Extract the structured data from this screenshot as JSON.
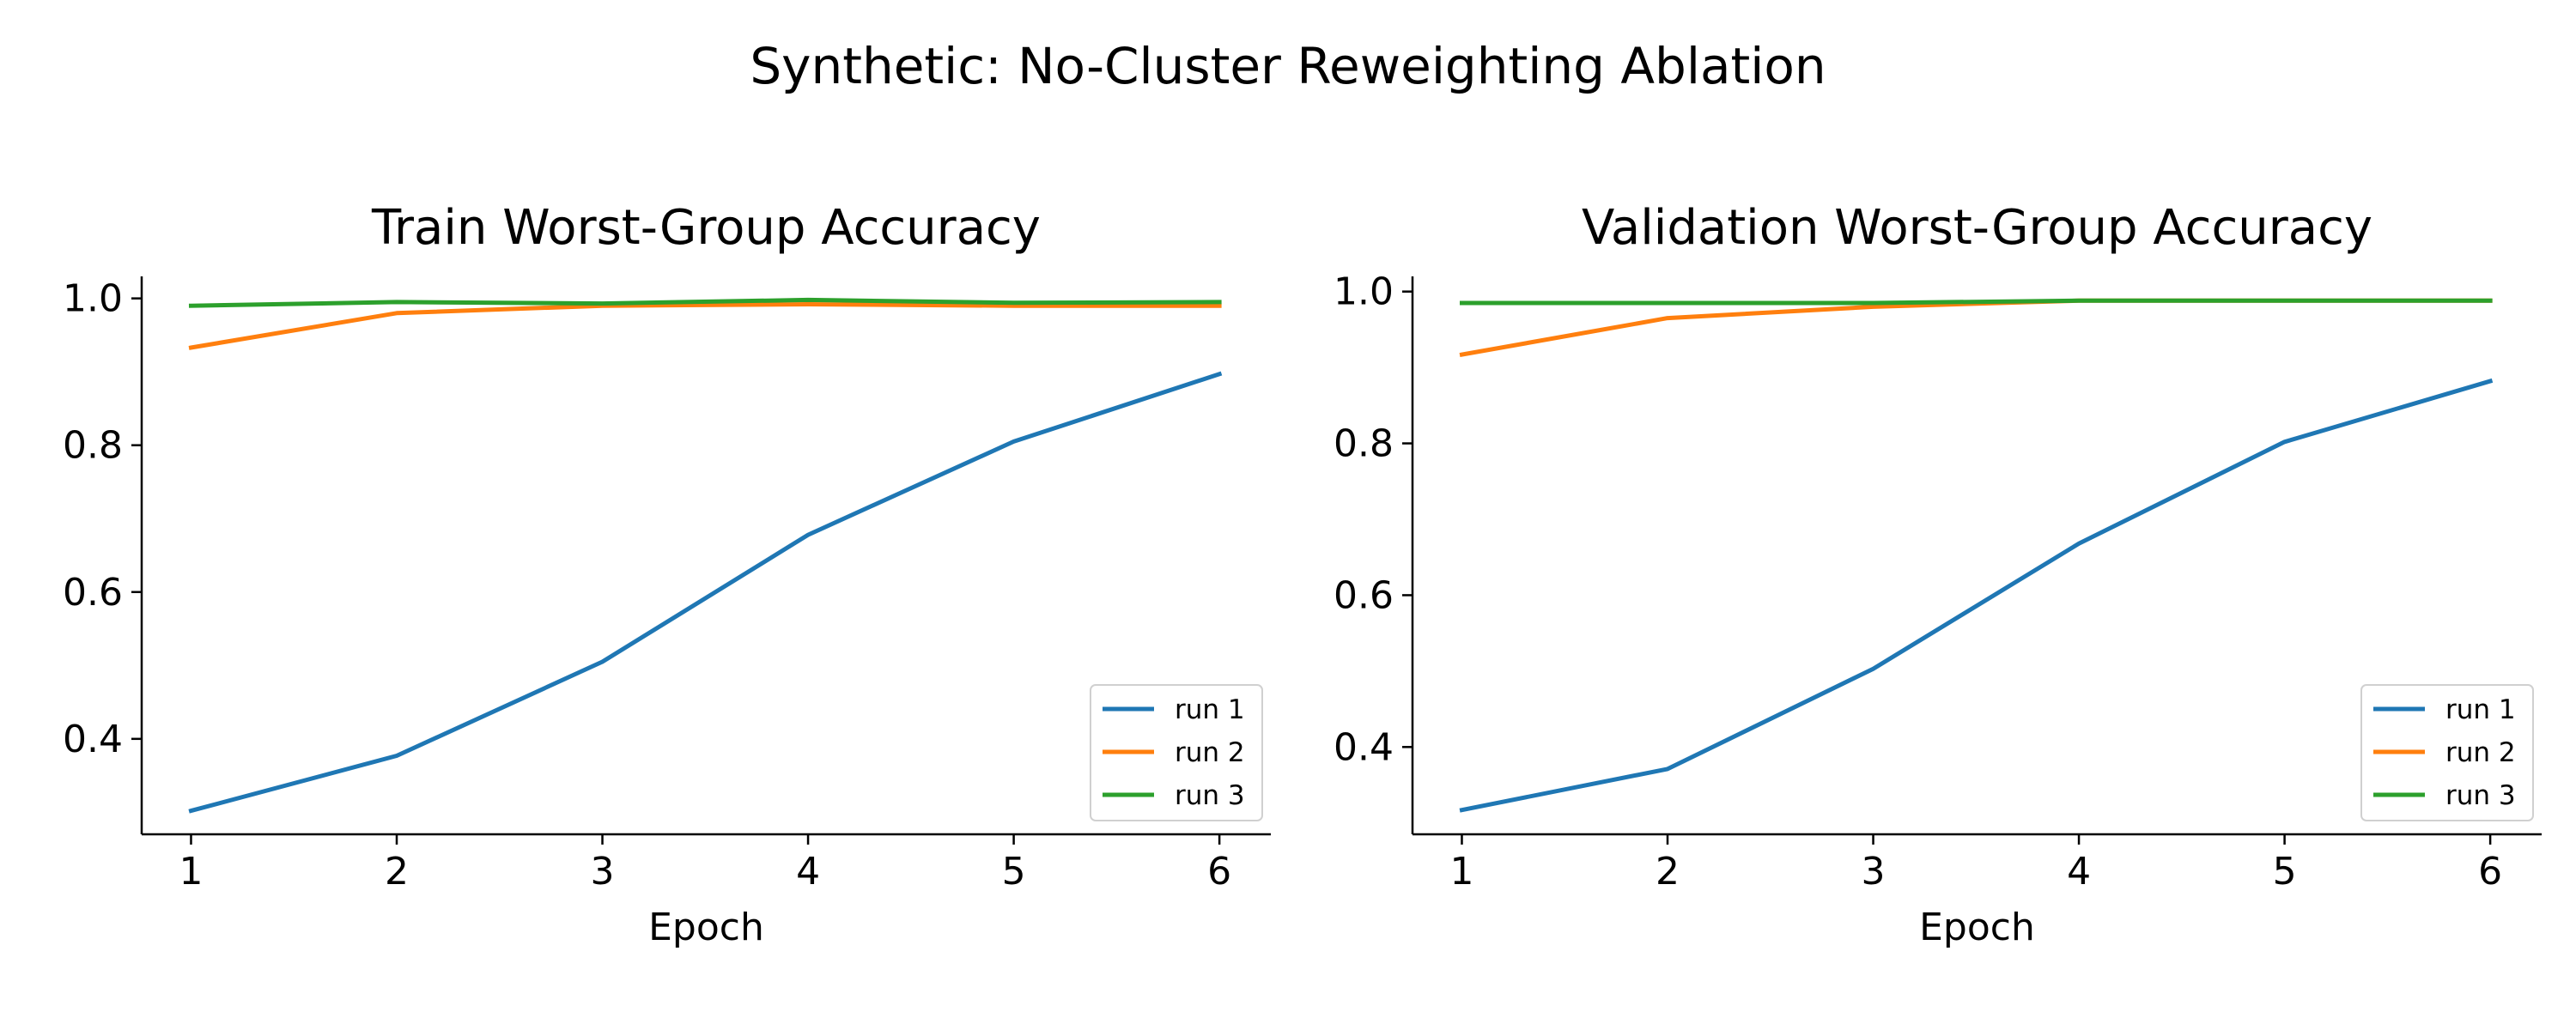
{
  "figure": {
    "suptitle": "Synthetic: No-Cluster Reweighting Ablation"
  },
  "chart_data": [
    {
      "type": "line",
      "title": "Train Worst-Group Accuracy",
      "xlabel": "Epoch",
      "ylabel": "",
      "x": [
        1,
        2,
        3,
        4,
        5,
        6
      ],
      "xticks": [
        "1",
        "2",
        "3",
        "4",
        "5",
        "6"
      ],
      "yticks": [
        "0.4",
        "0.6",
        "0.8",
        "1.0"
      ],
      "ylim": [
        0.27,
        1.03
      ],
      "xlim": [
        0.76,
        6.25
      ],
      "grid": false,
      "legend": "bottom-right",
      "series": [
        {
          "name": "run 1",
          "color": "#1f77b4",
          "values": [
            0.302,
            0.377,
            0.505,
            0.678,
            0.805,
            0.897
          ]
        },
        {
          "name": "run 2",
          "color": "#ff7f0e",
          "values": [
            0.933,
            0.98,
            0.99,
            0.992,
            0.99,
            0.99
          ]
        },
        {
          "name": "run 3",
          "color": "#2ca02c",
          "values": [
            0.99,
            0.995,
            0.993,
            0.998,
            0.994,
            0.995
          ]
        }
      ]
    },
    {
      "type": "line",
      "title": "Validation Worst-Group Accuracy",
      "xlabel": "Epoch",
      "ylabel": "",
      "x": [
        1,
        2,
        3,
        4,
        5,
        6
      ],
      "xticks": [
        "1",
        "2",
        "3",
        "4",
        "5",
        "6"
      ],
      "yticks": [
        "0.4",
        "0.6",
        "0.8",
        "1.0"
      ],
      "ylim": [
        0.285,
        1.02
      ],
      "xlim": [
        0.76,
        6.25
      ],
      "grid": false,
      "legend": "bottom-right",
      "series": [
        {
          "name": "run 1",
          "color": "#1f77b4",
          "values": [
            0.317,
            0.371,
            0.503,
            0.668,
            0.802,
            0.882
          ]
        },
        {
          "name": "run 2",
          "color": "#ff7f0e",
          "values": [
            0.917,
            0.965,
            0.98,
            0.988,
            0.988,
            0.988
          ]
        },
        {
          "name": "run 3",
          "color": "#2ca02c",
          "values": [
            0.985,
            0.985,
            0.985,
            0.988,
            0.988,
            0.988
          ]
        }
      ]
    }
  ]
}
